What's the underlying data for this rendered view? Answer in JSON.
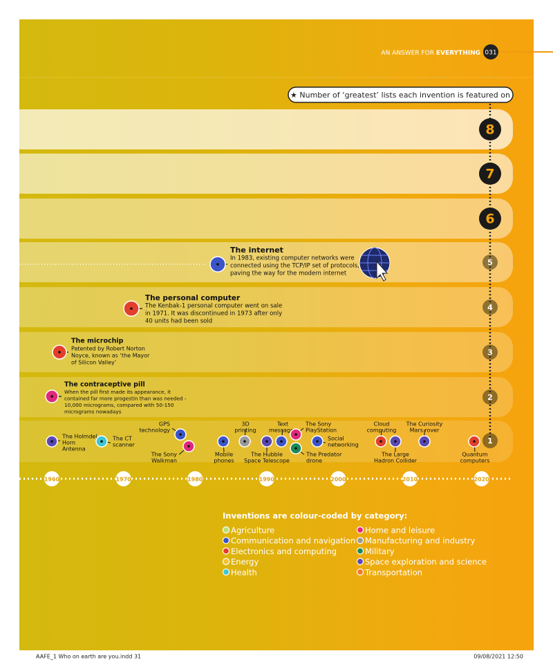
{
  "header": {
    "title": "AN ANSWER FOR ",
    "title_bold": "EVERYTHING",
    "page": "031"
  },
  "key_label": "★ Number of ‘greatest’ lists each invention is featured on",
  "levels": [
    8,
    7,
    6,
    5,
    4,
    3,
    2,
    1
  ],
  "years": [
    1960,
    1970,
    1980,
    1990,
    2000,
    2010,
    2020
  ],
  "featured": [
    {
      "title": "The internet",
      "color": "#3b55c8",
      "lines": [
        "In 1983, existing computer networks were",
        "connected using the TCP/IP set of protocols,",
        "paving the way for the modern internet"
      ]
    },
    {
      "title": "The personal computer",
      "color": "#e2402c",
      "lines": [
        "The Kenbak-1 personal computer went on sale",
        "in 1971. It was discontinued in 1973 after only",
        "40 units had been sold"
      ]
    },
    {
      "title": "The microchip",
      "color": "#e2402c",
      "lines": [
        "Patented by Robert Norton",
        "Noyce, known as ‘the Mayor",
        "of Silicon Valley’"
      ]
    },
    {
      "title": "The contraceptive pill",
      "color": "#e0287c",
      "lines": [
        "When the pill first made its appearance, it",
        "contained far more progestin than was needed -",
        "10,000 micrograms, compared with 50-150",
        "micrograms nowadays"
      ]
    }
  ],
  "items": [
    {
      "label": [
        "The Holmdel",
        "Horn",
        "Antenna"
      ],
      "color": "#5a48b4"
    },
    {
      "label": [
        "The CT",
        "scanner"
      ],
      "color": "#3cc6d4"
    },
    {
      "label": [
        "GPS",
        "technology"
      ],
      "color": "#3b55c8"
    },
    {
      "label": [
        "The Sony",
        "Walkman"
      ],
      "color": "#e0287c"
    },
    {
      "label": [
        "Mobile",
        "phones"
      ],
      "color": "#3b55c8"
    },
    {
      "label": [
        "3D",
        "printing"
      ],
      "color": "#9a9a9a"
    },
    {
      "label": [
        "The Hubble",
        "Space Telescope"
      ],
      "color": "#5a48b4"
    },
    {
      "label": [
        "Text",
        "messages"
      ],
      "color": "#3b55c8"
    },
    {
      "label": [
        "The Sony",
        "PlayStation"
      ],
      "color": "#e0287c"
    },
    {
      "label": [
        "The Predator",
        "drone"
      ],
      "color": "#1a8a5a"
    },
    {
      "label": [
        "Social",
        "networking"
      ],
      "color": "#3b55c8"
    },
    {
      "label": [
        "Cloud",
        "computing"
      ],
      "color": "#e2402c"
    },
    {
      "label": [
        "The Large",
        "Hadron Collider"
      ],
      "color": "#5a48b4"
    },
    {
      "label": [
        "The Curiosity",
        "Mars rover"
      ],
      "color": "#5a48b4"
    },
    {
      "label": [
        "Quantum",
        "computers"
      ],
      "color": "#e2402c"
    }
  ],
  "legend": {
    "title": "Inventions are colour-coded by category:",
    "categories": [
      {
        "name": "Agriculture",
        "color": "#b8e07a"
      },
      {
        "name": "Communication and navigation",
        "color": "#3b55c8"
      },
      {
        "name": "Electronics and computing",
        "color": "#e2402c"
      },
      {
        "name": "Energy",
        "color": "#f2c230"
      },
      {
        "name": "Health",
        "color": "#3cc6d4"
      },
      {
        "name": "Home and leisure",
        "color": "#e0287c"
      },
      {
        "name": "Manufacturing and industry",
        "color": "#9a9a9a"
      },
      {
        "name": "Military",
        "color": "#1a8a5a"
      },
      {
        "name": "Space exploration and science",
        "color": "#5a48b4"
      },
      {
        "name": "Transportation",
        "color": "#f07a30"
      }
    ]
  },
  "footer": {
    "left": "AAFE_1 Who on earth are you.indd   31",
    "right": "09/08/2021   12:50"
  }
}
